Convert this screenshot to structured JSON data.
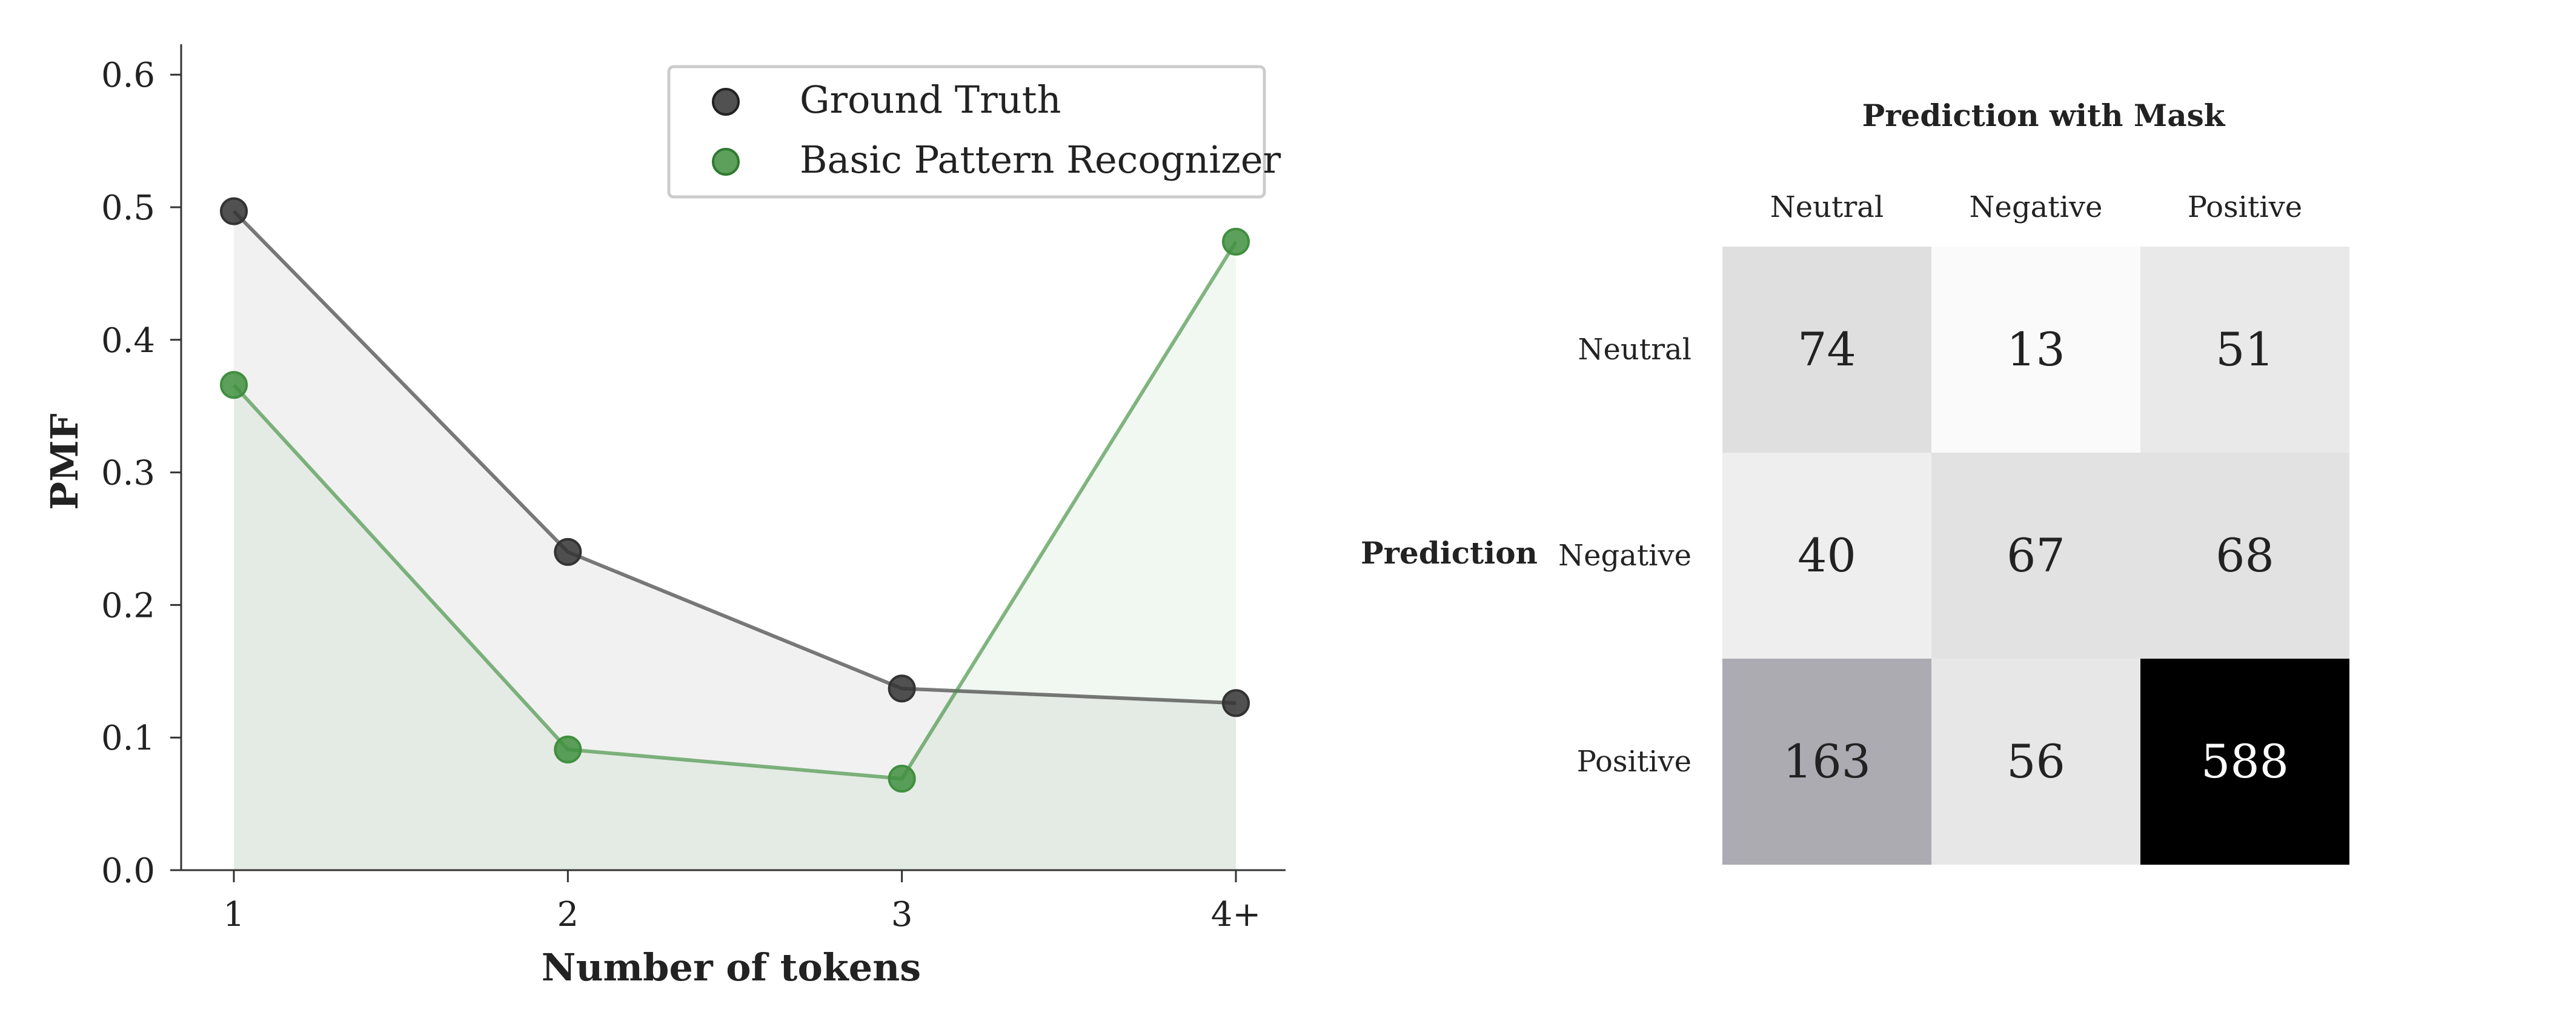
{
  "chart_data": [
    {
      "type": "line",
      "title": "",
      "xlabel": "Number of tokens",
      "ylabel": "PMF",
      "categories": [
        "1",
        "2",
        "3",
        "4+"
      ],
      "yticks": [
        "0.0",
        "0.1",
        "0.2",
        "0.3",
        "0.4",
        "0.5",
        "0.6"
      ],
      "ylim": [
        0,
        0.62
      ],
      "legend_position": "top-right",
      "grid": false,
      "series": [
        {
          "name": "Ground Truth",
          "values": [
            0.497,
            0.24,
            0.137,
            0.126
          ],
          "color": "#333333"
        },
        {
          "name": "Basic Pattern Recognizer",
          "values": [
            0.366,
            0.091,
            0.069,
            0.474
          ],
          "color": "#3f8f3f"
        }
      ]
    },
    {
      "type": "heatmap",
      "title": "Prediction with Mask",
      "ylabel": "Prediction",
      "columns": [
        "Neutral",
        "Negative",
        "Positive"
      ],
      "rows": [
        "Neutral",
        "Negative",
        "Positive"
      ],
      "values": [
        [
          74,
          13,
          51
        ],
        [
          40,
          67,
          68
        ],
        [
          163,
          56,
          588
        ]
      ],
      "colormap": "greys",
      "vmax": 588
    }
  ]
}
